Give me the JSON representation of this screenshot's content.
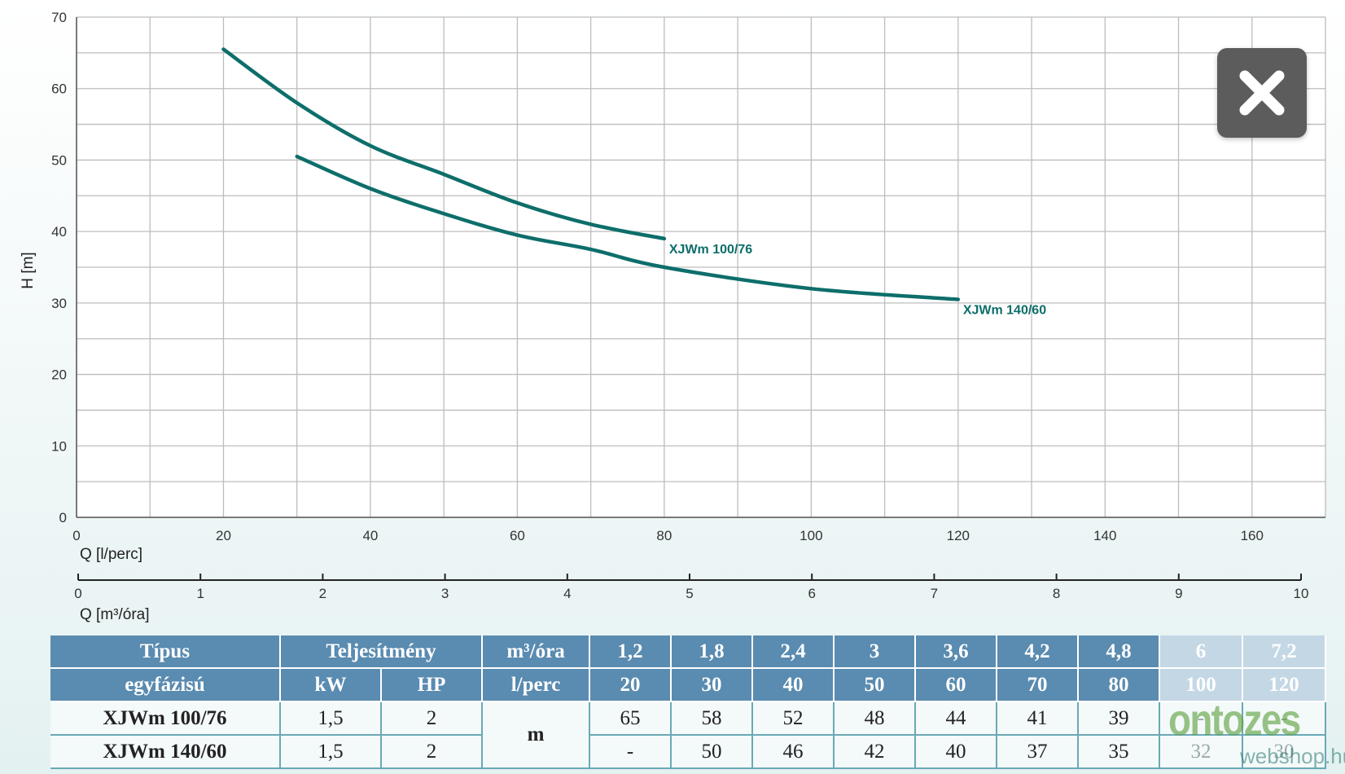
{
  "chart_data": {
    "type": "line",
    "ylabel": "H [m]",
    "xlabel": "Q [l/perc]",
    "xlabel2": "Q [m³/óra]",
    "xlim": [
      0,
      170
    ],
    "ylim": [
      0,
      70
    ],
    "xticks": [
      0,
      20,
      40,
      60,
      80,
      100,
      120,
      140,
      160
    ],
    "yticks": [
      0,
      10,
      20,
      30,
      40,
      50,
      60,
      70
    ],
    "xticks2": [
      0,
      1,
      2,
      3,
      4,
      5,
      6,
      7,
      8,
      9,
      10
    ],
    "grid": true,
    "series": [
      {
        "name": "XJWm 100/76",
        "color": "#0d6e6a",
        "x": [
          20,
          30,
          40,
          50,
          60,
          70,
          80
        ],
        "y": [
          65.5,
          58,
          52,
          48,
          44,
          41,
          39
        ]
      },
      {
        "name": "XJWm 140/60",
        "color": "#0d6e6a",
        "x": [
          30,
          40,
          50,
          60,
          70,
          80,
          100,
          120
        ],
        "y": [
          50.5,
          46,
          42.5,
          39.5,
          37.5,
          35,
          32,
          30.5
        ]
      }
    ]
  },
  "close_button": {
    "icon": "close-icon"
  },
  "table": {
    "header1": [
      "Típus",
      "Teljesítmény",
      "m³/óra",
      "1,2",
      "1,8",
      "2,4",
      "3",
      "3,6",
      "4,2",
      "4,8",
      "6",
      "7,2"
    ],
    "header2": [
      "egyfázisú",
      "kW",
      "HP",
      "l/perc",
      "20",
      "30",
      "40",
      "50",
      "60",
      "70",
      "80",
      "100",
      "120"
    ],
    "unit": "m",
    "rows": [
      {
        "name": "XJWm 100/76",
        "kw": "1,5",
        "hp": "2",
        "values": [
          "65",
          "58",
          "52",
          "48",
          "44",
          "41",
          "39",
          "-",
          "-"
        ]
      },
      {
        "name": "XJWm 140/60",
        "kw": "1,5",
        "hp": "2",
        "values": [
          "-",
          "50",
          "46",
          "42",
          "40",
          "37",
          "35",
          "32",
          "30"
        ]
      }
    ]
  },
  "watermark": {
    "logo": "ontozes",
    "domain": "webshop.hu"
  }
}
